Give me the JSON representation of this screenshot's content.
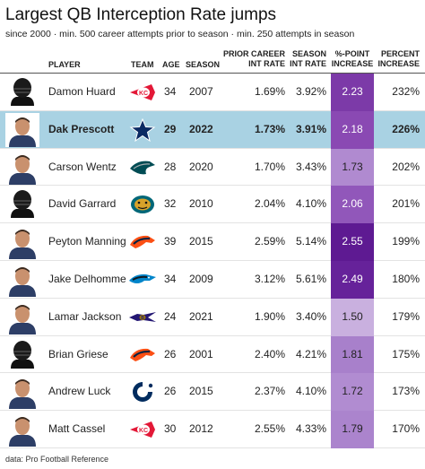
{
  "title": "Largest QB Interception Rate jumps",
  "subtitle": "since 2000 · min. 500 career attempts prior to season · min. 250 attempts in season",
  "columns": {
    "player": "PLAYER",
    "team": "TEAM",
    "age": "AGE",
    "season": "SEASON",
    "prior_1": "PRIOR CAREER",
    "prior_2": "INT RATE",
    "season_rate_1": "SEASON",
    "season_rate_2": "INT RATE",
    "point_1": "%-POINT",
    "point_2": "INCREASE",
    "pct_1": "PERCENT",
    "pct_2": "INCREASE"
  },
  "rows": [
    {
      "player": "Damon Huard",
      "team_icon": "chiefs-logo",
      "age": "34",
      "season": "2007",
      "prior": "1.69%",
      "season_rate": "3.92%",
      "point_increase": "2.23",
      "percent_increase": "232%",
      "heat": "#7c3aa8",
      "text_color": "#ffffff",
      "highlight": false,
      "photo_icon": "helmet-silhouette"
    },
    {
      "player": "Dak Prescott",
      "team_icon": "cowboys-logo",
      "age": "29",
      "season": "2022",
      "prior": "1.73%",
      "season_rate": "3.91%",
      "point_increase": "2.18",
      "percent_increase": "226%",
      "heat": "#8a49b3",
      "text_color": "#ffffff",
      "highlight": true,
      "photo_icon": "player-headshot"
    },
    {
      "player": "Carson Wentz",
      "team_icon": "eagles-logo",
      "age": "28",
      "season": "2020",
      "prior": "1.70%",
      "season_rate": "3.43%",
      "point_increase": "1.73",
      "percent_increase": "202%",
      "heat": "#b08ad0",
      "text_color": "#222222",
      "highlight": false,
      "photo_icon": "player-headshot"
    },
    {
      "player": "David Garrard",
      "team_icon": "jaguars-logo",
      "age": "32",
      "season": "2010",
      "prior": "2.04%",
      "season_rate": "4.10%",
      "point_increase": "2.06",
      "percent_increase": "201%",
      "heat": "#9157ba",
      "text_color": "#ffffff",
      "highlight": false,
      "photo_icon": "helmet-silhouette"
    },
    {
      "player": "Peyton Manning",
      "team_icon": "broncos-logo",
      "age": "39",
      "season": "2015",
      "prior": "2.59%",
      "season_rate": "5.14%",
      "point_increase": "2.55",
      "percent_increase": "199%",
      "heat": "#5e1a92",
      "text_color": "#ffffff",
      "highlight": false,
      "photo_icon": "player-headshot"
    },
    {
      "player": "Jake Delhomme",
      "team_icon": "panthers-logo",
      "age": "34",
      "season": "2009",
      "prior": "3.12%",
      "season_rate": "5.61%",
      "point_increase": "2.49",
      "percent_increase": "180%",
      "heat": "#66229a",
      "text_color": "#ffffff",
      "highlight": false,
      "photo_icon": "player-headshot"
    },
    {
      "player": "Lamar Jackson",
      "team_icon": "ravens-logo",
      "age": "24",
      "season": "2021",
      "prior": "1.90%",
      "season_rate": "3.40%",
      "point_increase": "1.50",
      "percent_increase": "179%",
      "heat": "#c9b0df",
      "text_color": "#222222",
      "highlight": false,
      "photo_icon": "player-headshot"
    },
    {
      "player": "Brian Griese",
      "team_icon": "broncos-logo",
      "age": "26",
      "season": "2001",
      "prior": "2.40%",
      "season_rate": "4.21%",
      "point_increase": "1.81",
      "percent_increase": "175%",
      "heat": "#a880cb",
      "text_color": "#222222",
      "highlight": false,
      "photo_icon": "helmet-silhouette"
    },
    {
      "player": "Andrew Luck",
      "team_icon": "colts-logo",
      "age": "26",
      "season": "2015",
      "prior": "2.37%",
      "season_rate": "4.10%",
      "point_increase": "1.72",
      "percent_increase": "173%",
      "heat": "#b18cd1",
      "text_color": "#222222",
      "highlight": false,
      "photo_icon": "player-headshot"
    },
    {
      "player": "Matt Cassel",
      "team_icon": "chiefs-logo",
      "age": "30",
      "season": "2012",
      "prior": "2.55%",
      "season_rate": "4.33%",
      "point_increase": "1.79",
      "percent_increase": "170%",
      "heat": "#ab84cd",
      "text_color": "#222222",
      "highlight": false,
      "photo_icon": "player-headshot"
    }
  ],
  "source": "data: Pro Football Reference"
}
